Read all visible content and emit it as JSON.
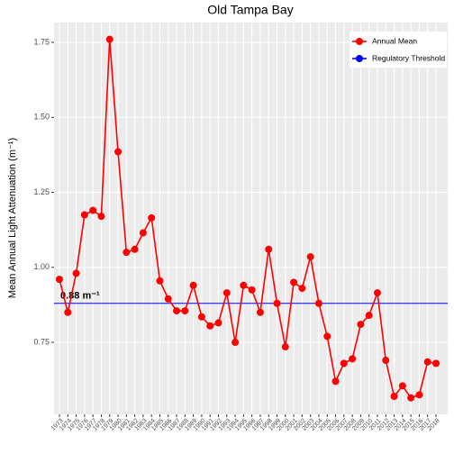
{
  "chart_data": {
    "type": "line",
    "title": "Old Tampa Bay",
    "y_label": "Mean Annual Light Attenuation (m⁻¹)",
    "categories": [
      "1973",
      "1974",
      "1975",
      "1976",
      "1977",
      "1978",
      "1979",
      "1980",
      "1981",
      "1982",
      "1983",
      "1984",
      "1985",
      "1986",
      "1987",
      "1988",
      "1989",
      "1990",
      "1991",
      "1992",
      "1993",
      "1994",
      "1995",
      "1996",
      "1997",
      "1998",
      "1999",
      "2000",
      "2001",
      "2002",
      "2003",
      "2004",
      "2005",
      "2006",
      "2007",
      "2008",
      "2009",
      "2010",
      "2011",
      "2012",
      "2013",
      "2014",
      "2015",
      "2016",
      "2017",
      "2018"
    ],
    "series": [
      {
        "name": "Annual Mean",
        "color": "#ff0000",
        "values": [
          0.96,
          0.85,
          0.98,
          1.175,
          1.19,
          1.17,
          1.76,
          1.385,
          1.05,
          1.06,
          1.115,
          1.165,
          0.955,
          0.895,
          0.855,
          0.855,
          0.94,
          0.835,
          0.805,
          0.815,
          0.915,
          0.75,
          0.94,
          0.925,
          0.85,
          1.06,
          0.88,
          0.735,
          0.95,
          0.93,
          1.035,
          0.88,
          0.77,
          0.62,
          0.68,
          0.695,
          0.81,
          0.84,
          0.915,
          0.69,
          0.57,
          0.605,
          0.565,
          0.575,
          0.685,
          0.68
        ]
      }
    ],
    "threshold": {
      "name": "Regulatory Threshold",
      "color": "#0000ff",
      "value": 0.88,
      "label": "0.88 m⁻¹"
    },
    "ylim": [
      0.51,
      1.816
    ],
    "yticks": [
      {
        "value": 0.75,
        "label": "0.75"
      },
      {
        "value": 1.0,
        "label": "1.00"
      },
      {
        "value": 1.25,
        "label": "1.25"
      },
      {
        "value": 1.5,
        "label": "1.50"
      },
      {
        "value": 1.75,
        "label": "1.75"
      }
    ],
    "grid": true,
    "legend": "top-right"
  }
}
